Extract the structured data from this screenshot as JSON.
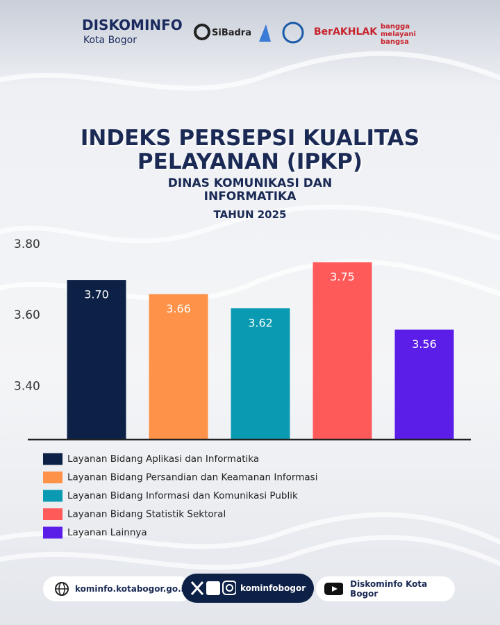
{
  "header": {
    "brand": "DISKOMINFO",
    "city": "Kota Bogor",
    "logos": [
      "SiBadra",
      "BerAKHLAK",
      "bangga melayani bangsa"
    ]
  },
  "chart_data": {
    "type": "bar",
    "title": "INDEKS PERSEPSI KUALITAS PELAYANAN (IPKP)",
    "subtitle": "DINAS KOMUNIKASI DAN INFORMATIKA",
    "caption": "TAHUN 2025",
    "categories": [
      "Layanan Bidang Aplikasi dan Informatika",
      "Layanan Bidang Persandian dan Keamanan Informasi",
      "Layanan Bidang Informasi dan Komunikasi Publik",
      "Layanan Bidang Statistik Sektoral",
      "Layanan Lainnya"
    ],
    "values": [
      3.7,
      3.66,
      3.62,
      3.75,
      3.56
    ],
    "value_labels": [
      "3.70",
      "3.66",
      "3.62",
      "3.75",
      "3.56"
    ],
    "colors": [
      "#0d2146",
      "#ff9249",
      "#0a9bb3",
      "#ff5a5a",
      "#5b1de8"
    ],
    "ylim": [
      3.25,
      3.8
    ],
    "yticks": [
      {
        "value": 3.8,
        "label": "3.80"
      },
      {
        "value": 3.6,
        "label": "3.60"
      },
      {
        "value": 3.4,
        "label": "3.40"
      }
    ],
    "grid": false,
    "legend": "bottom"
  },
  "footer": {
    "website": "kominfo.kotabogor.go.id",
    "social": "kominfobogor",
    "youtube": "Diskominfo Kota Bogor"
  }
}
